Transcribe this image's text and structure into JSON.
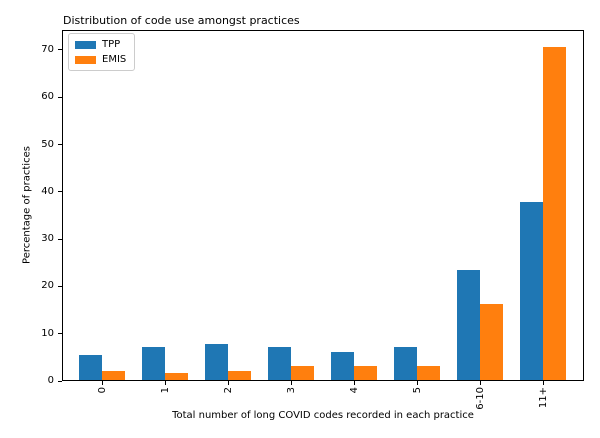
{
  "chart_data": {
    "type": "bar",
    "title": "Distribution of code use amongst practices",
    "xlabel": "Total number of long COVID codes recorded in each practice",
    "ylabel": "Percentage of practices",
    "categories": [
      "0",
      "1",
      "2",
      "3",
      "4",
      "5",
      "6-10",
      "11+"
    ],
    "series": [
      {
        "name": "TPP",
        "color": "#1f77b4",
        "values": [
          5.4,
          6.9,
          7.6,
          6.9,
          5.9,
          7.0,
          23.3,
          37.6
        ]
      },
      {
        "name": "EMIS",
        "color": "#ff7f0e",
        "values": [
          2.0,
          1.4,
          2.0,
          2.9,
          2.9,
          3.0,
          16.0,
          70.5
        ]
      }
    ],
    "yticks": [
      0,
      10,
      20,
      30,
      40,
      50,
      60,
      70
    ],
    "ylim": [
      0,
      74.2
    ],
    "grid": false,
    "legend_position": "upper-left",
    "xticklabel_rotation": 90
  }
}
